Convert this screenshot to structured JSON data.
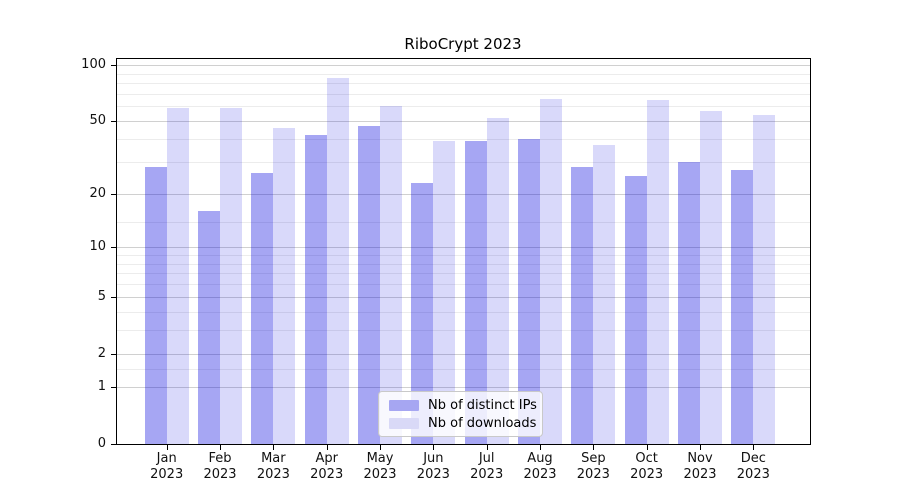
{
  "figure": {
    "title": "RiboCrypt 2023"
  },
  "chart_data": {
    "type": "bar",
    "title": "RiboCrypt 2023",
    "x_axis": {
      "months": [
        "Jan",
        "Feb",
        "Mar",
        "Apr",
        "May",
        "Jun",
        "Jul",
        "Aug",
        "Sep",
        "Oct",
        "Nov",
        "Dec"
      ],
      "year_label": "2023"
    },
    "categories": [
      "Jan 2023",
      "Feb 2023",
      "Mar 2023",
      "Apr 2023",
      "May 2023",
      "Jun 2023",
      "Jul 2023",
      "Aug 2023",
      "Sep 2023",
      "Oct 2023",
      "Nov 2023",
      "Dec 2023"
    ],
    "series": [
      {
        "name": "Nb of distinct IPs",
        "color_hex": "#a6a6f2",
        "fill": "rgba(0,0,222,0.35)",
        "values": [
          28,
          16,
          26,
          42,
          47,
          23,
          39,
          40,
          28,
          25,
          30,
          27
        ]
      },
      {
        "name": "Nb of downloads",
        "color_hex": "#d9d9f7",
        "fill": "rgba(0,0,222,0.15)",
        "values": [
          59,
          59,
          46,
          85,
          60,
          39,
          52,
          66,
          37,
          65,
          57,
          54
        ]
      }
    ],
    "y_axis": {
      "scale": "log10(value+1)",
      "major_ticks": [
        0,
        1,
        2,
        5,
        10,
        20,
        50,
        100
      ],
      "minor_ticks": [
        1.5,
        3,
        4,
        6,
        7,
        8,
        9,
        14,
        30,
        40,
        60,
        70,
        80,
        90
      ],
      "ylim": [
        0,
        109
      ]
    },
    "legend": {
      "position": "lower center",
      "entries": [
        "Nb of distinct IPs",
        "Nb of downloads"
      ]
    },
    "grid": "major+minor horizontal"
  }
}
